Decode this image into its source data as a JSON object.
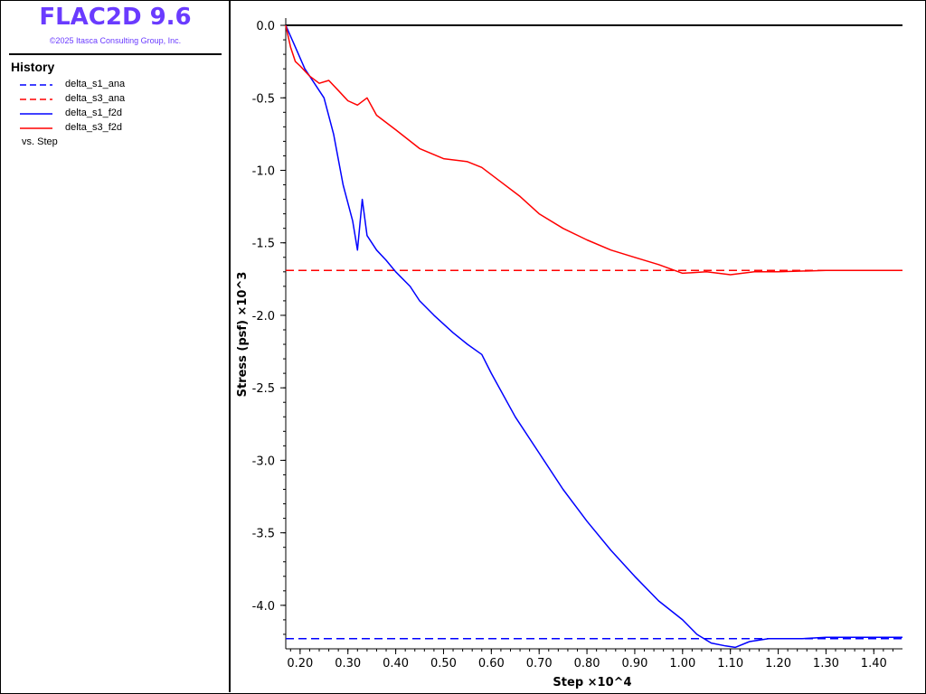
{
  "app": {
    "title": "FLAC2D 9.6",
    "copyright": "©2025 Itasca Consulting Group, Inc."
  },
  "legend": {
    "heading": "History",
    "entries": [
      {
        "label": "delta_s1_ana",
        "color": "#0000ff",
        "dashed": true
      },
      {
        "label": "delta_s3_ana",
        "color": "#ff0000",
        "dashed": true
      },
      {
        "label": "delta_s1_f2d",
        "color": "#0000ff",
        "dashed": false
      },
      {
        "label": "delta_s3_f2d",
        "color": "#ff0000",
        "dashed": false
      }
    ],
    "vs": "vs. Step"
  },
  "chart_data": {
    "type": "line",
    "xlabel": "Step ×10^4",
    "ylabel": "Stress (psf)  ×10^3",
    "xlim": [
      0.17,
      1.46
    ],
    "ylim": [
      -4.3,
      0.05
    ],
    "x_ticks": [
      "0.20",
      "0.30",
      "0.40",
      "0.50",
      "0.60",
      "0.70",
      "0.80",
      "0.90",
      "1.00",
      "1.10",
      "1.20",
      "1.30",
      "1.40"
    ],
    "y_ticks": [
      "0.0",
      "-0.5",
      "-1.0",
      "-1.5",
      "-2.0",
      "-2.5",
      "-3.0",
      "-3.5",
      "-4.0"
    ],
    "grid": false,
    "series": [
      {
        "name": "delta_s1_ana",
        "color": "#0000ff",
        "dashed": true,
        "x": [
          0.17,
          1.46
        ],
        "y": [
          -4.23,
          -4.23
        ]
      },
      {
        "name": "delta_s3_ana",
        "color": "#ff0000",
        "dashed": true,
        "x": [
          0.17,
          1.46
        ],
        "y": [
          -1.69,
          -1.69
        ]
      },
      {
        "name": "delta_s1_f2d",
        "color": "#0000ff",
        "dashed": false,
        "x": [
          0.17,
          0.19,
          0.21,
          0.23,
          0.25,
          0.27,
          0.29,
          0.31,
          0.32,
          0.33,
          0.34,
          0.36,
          0.38,
          0.4,
          0.43,
          0.45,
          0.48,
          0.52,
          0.55,
          0.58,
          0.6,
          0.65,
          0.7,
          0.75,
          0.8,
          0.85,
          0.9,
          0.95,
          1.0,
          1.03,
          1.06,
          1.09,
          1.11,
          1.14,
          1.18,
          1.25,
          1.3,
          1.35,
          1.4,
          1.46
        ],
        "y": [
          0.0,
          -0.15,
          -0.3,
          -0.4,
          -0.5,
          -0.75,
          -1.1,
          -1.35,
          -1.55,
          -1.2,
          -1.45,
          -1.55,
          -1.62,
          -1.7,
          -1.8,
          -1.9,
          -2.0,
          -2.12,
          -2.2,
          -2.27,
          -2.4,
          -2.7,
          -2.95,
          -3.2,
          -3.42,
          -3.62,
          -3.8,
          -3.97,
          -4.1,
          -4.2,
          -4.26,
          -4.28,
          -4.29,
          -4.25,
          -4.23,
          -4.23,
          -4.22,
          -4.22,
          -4.22,
          -4.22
        ]
      },
      {
        "name": "delta_s3_f2d",
        "color": "#ff0000",
        "dashed": false,
        "x": [
          0.17,
          0.18,
          0.19,
          0.2,
          0.22,
          0.24,
          0.26,
          0.28,
          0.3,
          0.32,
          0.34,
          0.36,
          0.4,
          0.45,
          0.5,
          0.55,
          0.58,
          0.62,
          0.66,
          0.7,
          0.75,
          0.8,
          0.85,
          0.9,
          0.95,
          1.0,
          1.05,
          1.1,
          1.15,
          1.2,
          1.3,
          1.4,
          1.46
        ],
        "y": [
          0.0,
          -0.15,
          -0.25,
          -0.28,
          -0.35,
          -0.4,
          -0.38,
          -0.45,
          -0.52,
          -0.55,
          -0.5,
          -0.62,
          -0.72,
          -0.85,
          -0.92,
          -0.94,
          -0.98,
          -1.08,
          -1.18,
          -1.3,
          -1.4,
          -1.48,
          -1.55,
          -1.6,
          -1.65,
          -1.71,
          -1.7,
          -1.72,
          -1.7,
          -1.7,
          -1.69,
          -1.69,
          -1.69
        ]
      }
    ]
  }
}
